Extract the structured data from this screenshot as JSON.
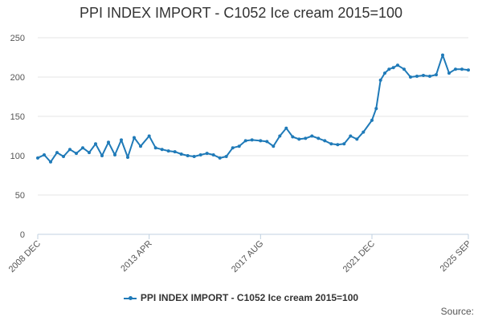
{
  "chart_data": {
    "type": "line",
    "title": "PPI INDEX IMPORT - C1052 Ice cream 2015=100",
    "xlabel": "",
    "ylabel": "",
    "ylim": [
      0,
      250
    ],
    "yticks": [
      "0",
      "50",
      "100",
      "150",
      "200",
      "250"
    ],
    "xticks": [
      "2008 DEC",
      "2013 APR",
      "2017 AUG",
      "2021 DEC",
      "2025 SEP"
    ],
    "grid": true,
    "legend_position": "bottom",
    "series": [
      {
        "name": "PPI INDEX IMPORT - C1052 Ice cream 2015=100",
        "color": "#1f7ab8",
        "x": [
          "2008-12",
          "2009-03",
          "2009-06",
          "2009-09",
          "2009-12",
          "2010-03",
          "2010-06",
          "2010-09",
          "2010-12",
          "2011-03",
          "2011-06",
          "2011-09",
          "2011-12",
          "2012-03",
          "2012-06",
          "2012-09",
          "2012-12",
          "2013-04",
          "2013-07",
          "2013-10",
          "2014-01",
          "2014-04",
          "2014-07",
          "2014-10",
          "2015-01",
          "2015-04",
          "2015-07",
          "2015-10",
          "2016-01",
          "2016-04",
          "2016-07",
          "2016-10",
          "2017-01",
          "2017-04",
          "2017-08",
          "2017-11",
          "2018-02",
          "2018-05",
          "2018-08",
          "2018-11",
          "2019-02",
          "2019-05",
          "2019-08",
          "2019-11",
          "2020-02",
          "2020-05",
          "2020-08",
          "2020-11",
          "2021-02",
          "2021-05",
          "2021-08",
          "2021-12",
          "2022-02",
          "2022-04",
          "2022-06",
          "2022-08",
          "2022-10",
          "2022-12",
          "2023-03",
          "2023-06",
          "2023-09",
          "2023-12",
          "2024-03",
          "2024-06",
          "2024-09",
          "2024-12",
          "2025-03",
          "2025-06",
          "2025-09"
        ],
        "values": [
          97,
          101,
          92,
          104,
          99,
          108,
          103,
          110,
          104,
          115,
          100,
          117,
          101,
          120,
          98,
          123,
          112,
          125,
          110,
          108,
          106,
          105,
          102,
          100,
          99,
          101,
          103,
          101,
          97,
          99,
          110,
          112,
          119,
          120,
          119,
          118,
          112,
          125,
          135,
          124,
          121,
          122,
          125,
          122,
          119,
          115,
          114,
          115,
          125,
          121,
          130,
          145,
          160,
          196,
          205,
          210,
          212,
          215,
          210,
          200,
          201,
          202,
          201,
          203,
          228,
          205,
          210,
          210,
          209
        ]
      }
    ]
  },
  "source_label": "Source:"
}
